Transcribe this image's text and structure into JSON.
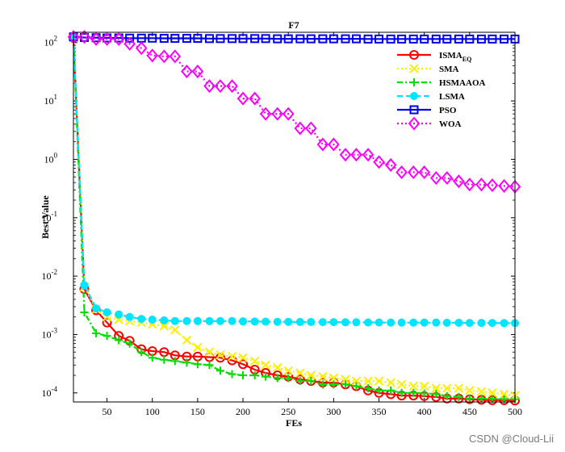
{
  "chart_data": {
    "type": "line",
    "title": "F7",
    "xlabel": "FEs",
    "ylabel": "Best Value",
    "xlim": [
      13,
      500
    ],
    "ylim": [
      7e-05,
      150
    ],
    "yscale": "log",
    "x_ticks": [
      50,
      100,
      150,
      200,
      250,
      300,
      350,
      400,
      450,
      500
    ],
    "y_ticks": [
      {
        "value": 0.0001,
        "base": "10",
        "exp": "-4"
      },
      {
        "value": 0.001,
        "base": "10",
        "exp": "-3"
      },
      {
        "value": 0.01,
        "base": "10",
        "exp": "-2"
      },
      {
        "value": 0.1,
        "base": "10",
        "exp": "-1"
      },
      {
        "value": 1,
        "base": "10",
        "exp": "0"
      },
      {
        "value": 10,
        "base": "10",
        "exp": "1"
      },
      {
        "value": 100,
        "base": "10",
        "exp": "2"
      }
    ],
    "legend_position": "top-right",
    "series": [
      {
        "name": "ISMA",
        "subscript": "EQ",
        "color": "#ff0000",
        "dash": "solid",
        "marker": "circle",
        "x": [
          13,
          25,
          38,
          50,
          63,
          75,
          88,
          100,
          113,
          125,
          138,
          150,
          163,
          175,
          188,
          200,
          213,
          225,
          238,
          250,
          263,
          275,
          288,
          300,
          313,
          325,
          338,
          350,
          363,
          375,
          388,
          400,
          413,
          425,
          438,
          450,
          463,
          475,
          488,
          500
        ],
        "y": [
          120,
          0.006,
          0.0026,
          0.0016,
          0.00095,
          0.00078,
          0.00056,
          0.00052,
          0.0005,
          0.00044,
          0.00042,
          0.00042,
          0.00041,
          0.0004,
          0.00036,
          0.00031,
          0.00025,
          0.00022,
          0.0002,
          0.00019,
          0.00017,
          0.00016,
          0.00015,
          0.00015,
          0.00014,
          0.00013,
          0.00011,
          0.0001,
          9.5e-05,
          9e-05,
          9e-05,
          8.8e-05,
          8.5e-05,
          8e-05,
          8e-05,
          7.8e-05,
          7.6e-05,
          7.5e-05,
          7.5e-05,
          7.4e-05
        ]
      },
      {
        "name": "SMA",
        "color": "#ffee00",
        "dash": "dotted",
        "marker": "x",
        "x": [
          13,
          25,
          38,
          50,
          63,
          75,
          88,
          100,
          113,
          125,
          138,
          150,
          163,
          175,
          188,
          200,
          213,
          225,
          238,
          250,
          263,
          275,
          288,
          300,
          313,
          325,
          338,
          350,
          363,
          375,
          388,
          400,
          413,
          425,
          438,
          450,
          463,
          475,
          488,
          500
        ],
        "y": [
          120,
          0.0065,
          0.0027,
          0.002,
          0.0018,
          0.0017,
          0.0016,
          0.0015,
          0.0014,
          0.0012,
          0.0008,
          0.0006,
          0.0005,
          0.00045,
          0.00042,
          0.0004,
          0.00035,
          0.0003,
          0.00027,
          0.00024,
          0.00022,
          0.0002,
          0.00019,
          0.00018,
          0.00017,
          0.00016,
          0.00016,
          0.00016,
          0.00015,
          0.00014,
          0.00013,
          0.00013,
          0.00012,
          0.00012,
          0.00012,
          0.00011,
          0.000105,
          0.0001,
          9.5e-05,
          9e-05
        ]
      },
      {
        "name": "HSMAAOA",
        "color": "#00dd00",
        "dash": "dashdot",
        "marker": "plus",
        "x": [
          13,
          25,
          38,
          50,
          63,
          75,
          88,
          100,
          113,
          125,
          138,
          150,
          163,
          175,
          188,
          200,
          213,
          225,
          238,
          250,
          263,
          275,
          288,
          300,
          313,
          325,
          338,
          350,
          363,
          375,
          388,
          400,
          413,
          425,
          438,
          450,
          463,
          475,
          488,
          500
        ],
        "y": [
          120,
          0.0024,
          0.00105,
          0.00095,
          0.0008,
          0.0007,
          0.0005,
          0.0004,
          0.00037,
          0.00035,
          0.00033,
          0.00031,
          0.0003,
          0.00024,
          0.00021,
          0.0002,
          0.0002,
          0.00019,
          0.00018,
          0.00018,
          0.00016,
          0.00016,
          0.00014,
          0.00014,
          0.00014,
          0.00013,
          0.00012,
          0.00011,
          0.00011,
          0.0001,
          0.0001,
          9.8e-05,
          9.6e-05,
          8.8e-05,
          8.5e-05,
          8e-05,
          8e-05,
          7.9e-05,
          7.8e-05,
          7.8e-05
        ]
      },
      {
        "name": "LSMA",
        "color": "#00e5ff",
        "dash": "dashed",
        "marker": "filled-circle",
        "x": [
          13,
          25,
          38,
          50,
          63,
          75,
          88,
          100,
          113,
          125,
          138,
          150,
          163,
          175,
          188,
          200,
          213,
          225,
          238,
          250,
          263,
          275,
          288,
          300,
          313,
          325,
          338,
          350,
          363,
          375,
          388,
          400,
          413,
          425,
          438,
          450,
          463,
          475,
          488,
          500
        ],
        "y": [
          120,
          0.007,
          0.0028,
          0.0024,
          0.0022,
          0.002,
          0.00185,
          0.0018,
          0.00175,
          0.0017,
          0.0017,
          0.0017,
          0.0017,
          0.0017,
          0.0017,
          0.00168,
          0.00167,
          0.00166,
          0.00165,
          0.00165,
          0.00164,
          0.00164,
          0.00163,
          0.00163,
          0.00162,
          0.00162,
          0.00161,
          0.00161,
          0.0016,
          0.0016,
          0.0016,
          0.0016,
          0.0016,
          0.00159,
          0.00159,
          0.00158,
          0.00158,
          0.00158,
          0.00157,
          0.00157
        ]
      },
      {
        "name": "PSO",
        "color": "#0000ee",
        "dash": "solid",
        "marker": "square",
        "x": [
          13,
          25,
          38,
          50,
          63,
          75,
          88,
          100,
          113,
          125,
          138,
          150,
          163,
          175,
          188,
          200,
          213,
          225,
          238,
          250,
          263,
          275,
          288,
          300,
          313,
          325,
          338,
          350,
          363,
          375,
          388,
          400,
          413,
          425,
          438,
          450,
          463,
          475,
          488,
          500
        ],
        "y": [
          125,
          122,
          121,
          120,
          120,
          119,
          119,
          119,
          118,
          118,
          118,
          118,
          117,
          117,
          117,
          117,
          117,
          117,
          116,
          116,
          116,
          116,
          116,
          116,
          116,
          116,
          115,
          115,
          115,
          115,
          115,
          115,
          115,
          115,
          115,
          115,
          115,
          115,
          115,
          115
        ]
      },
      {
        "name": "WOA",
        "color": "#ff00ff",
        "dash": "dotted",
        "marker": "diamond",
        "x": [
          13,
          25,
          38,
          50,
          63,
          75,
          88,
          100,
          113,
          125,
          138,
          150,
          163,
          175,
          188,
          200,
          213,
          225,
          238,
          250,
          263,
          275,
          288,
          300,
          313,
          325,
          338,
          350,
          363,
          375,
          388,
          400,
          413,
          425,
          438,
          450,
          463,
          475,
          488,
          500
        ],
        "y": [
          125,
          125,
          115,
          115,
          115,
          95,
          80,
          60,
          58,
          58,
          32,
          32,
          18,
          18,
          18,
          11,
          11,
          6,
          6,
          6,
          3.4,
          3.4,
          1.8,
          1.8,
          1.2,
          1.2,
          1.2,
          0.9,
          0.8,
          0.6,
          0.6,
          0.6,
          0.48,
          0.48,
          0.42,
          0.37,
          0.37,
          0.36,
          0.35,
          0.34
        ]
      }
    ]
  },
  "watermark": "CSDN @Cloud-Lii"
}
